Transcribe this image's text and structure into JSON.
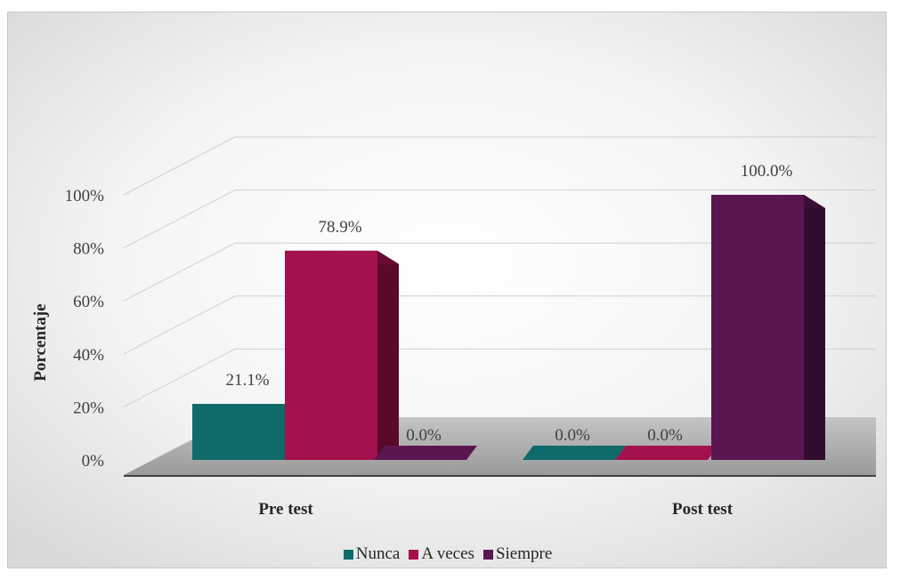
{
  "chart_data": {
    "type": "bar",
    "style": "3d-clustered-column",
    "categories": [
      "Pre test",
      "Post test"
    ],
    "series": [
      {
        "name": "Nunca",
        "color": "#0f6a6a",
        "values": [
          21.1,
          0.0
        ],
        "labels": [
          "21.1%",
          "0.0%"
        ]
      },
      {
        "name": "A veces",
        "color": "#a3114f",
        "values": [
          78.9,
          0.0
        ],
        "labels": [
          "78.9%",
          "0.0%"
        ]
      },
      {
        "name": "Siempre",
        "color": "#5a1650",
        "values": [
          0.0,
          100.0
        ],
        "labels": [
          "0.0%",
          "100.0%"
        ]
      }
    ],
    "ylabel": "Porcentaje",
    "xlabel": "",
    "ylim": [
      0,
      100
    ],
    "yticks": [
      "0%",
      "20%",
      "40%",
      "60%",
      "80%",
      "100%"
    ],
    "grid": true,
    "legend_position": "bottom"
  }
}
